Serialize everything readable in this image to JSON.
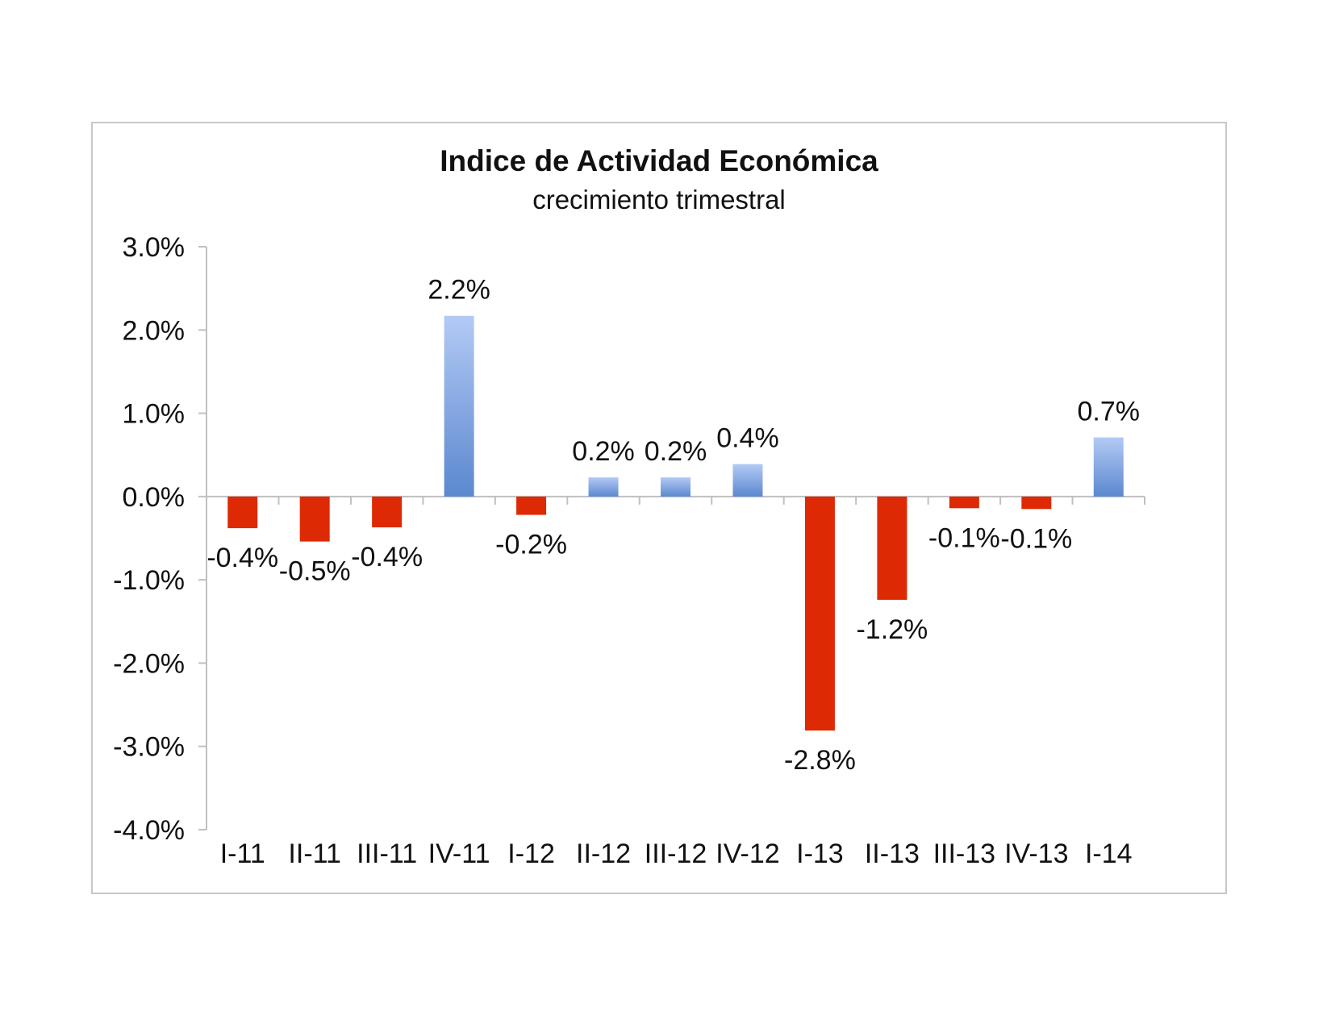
{
  "chart_data": {
    "type": "bar",
    "title": "Indice de Actividad Económica",
    "subtitle": "crecimiento trimestral",
    "categories": [
      "I-11",
      "II-11",
      "III-11",
      "IV-11",
      "I-12",
      "II-12",
      "III-12",
      "IV-12",
      "I-13",
      "II-13",
      "III-13",
      "IV-13",
      "I-14"
    ],
    "values": [
      -0.38,
      -0.54,
      -0.37,
      2.17,
      -0.22,
      0.23,
      0.23,
      0.39,
      -2.81,
      -1.24,
      -0.14,
      -0.15,
      0.71
    ],
    "data_labels": [
      "-0.4%",
      "-0.5%",
      "-0.4%",
      "2.2%",
      "-0.2%",
      "0.2%",
      "0.2%",
      "0.4%",
      "-2.8%",
      "-1.2%",
      "-0.1%",
      "-0.1%",
      "0.7%"
    ],
    "ylim": [
      -4.0,
      3.0
    ],
    "yticks": [
      3.0,
      2.0,
      1.0,
      0.0,
      -1.0,
      -2.0,
      -3.0,
      -4.0
    ],
    "ytick_labels": [
      "3.0%",
      "2.0%",
      "1.0%",
      "0.0%",
      "-1.0%",
      "-2.0%",
      "-3.0%",
      "-4.0%"
    ],
    "xlabel": "",
    "ylabel": "",
    "grid": false,
    "legend": "none",
    "colors": {
      "positive_top": "#b3caf5",
      "positive_bottom": "#5b88cf",
      "negative": "#dd2a05",
      "axis": "#c0c0c0"
    }
  }
}
